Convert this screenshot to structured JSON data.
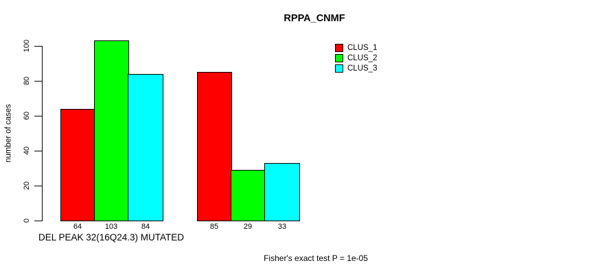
{
  "chart_data": {
    "type": "bar",
    "title": "RPPA_CNMF",
    "ylabel": "number of cases",
    "xlabel": "",
    "footnote": "Fisher's exact test P = 1e-05",
    "categories": [
      "DEL PEAK 32(16Q24.3) MUTATED",
      ""
    ],
    "series": [
      {
        "name": "CLUS_1",
        "color": "#ff0000",
        "values": [
          64,
          85
        ]
      },
      {
        "name": "CLUS_2",
        "color": "#00ff00",
        "values": [
          103,
          29
        ]
      },
      {
        "name": "CLUS_3",
        "color": "#00ffff",
        "values": [
          84,
          33
        ]
      }
    ],
    "yticks": [
      0,
      20,
      40,
      60,
      80,
      100
    ],
    "ylim": [
      0,
      105
    ],
    "grid": false,
    "legend_position": "top-right",
    "show_value_labels": true,
    "axis_color": "#000000",
    "background_color": "#ffffff"
  }
}
